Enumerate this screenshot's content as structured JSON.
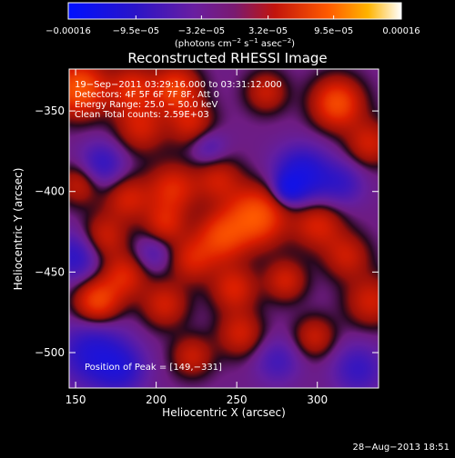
{
  "chart_data": {
    "type": "heatmap",
    "title": "Reconstructed RHESSI Image",
    "xlabel": "Heliocentric X (arcsec)",
    "ylabel": "Heliocentric Y (arcsec)",
    "xlim": [
      146,
      338
    ],
    "ylim": [
      -522,
      -324
    ],
    "xticks": [
      150,
      200,
      250,
      300
    ],
    "xtick_labels": [
      "150",
      "200",
      "250",
      "300"
    ],
    "yticks": [
      -350,
      -400,
      -450,
      -500
    ],
    "ytick_labels": [
      "−350",
      "−400",
      "−450",
      "−500"
    ],
    "colorbar": {
      "range": [
        -0.00016,
        0.00016
      ],
      "ticks": [
        -0.00016,
        -9.5e-05,
        -3.2e-05,
        3.2e-05,
        9.5e-05,
        0.00016
      ],
      "tick_labels": [
        "−0.00016",
        "−9.5e−05",
        "−3.2e−05",
        "3.2e−05",
        "9.5e−05",
        "0.00016"
      ],
      "unit_label": "(photons cm",
      "unit_exp1": "−2",
      "unit_mid": " s",
      "unit_exp2": "−1",
      "unit_mid2": " asec",
      "unit_exp3": "−2",
      "unit_end": ")"
    },
    "annotations": [
      "19−Sep−2011 03:29:16.000 to 03:31:12.000",
      "Detectors: 4F 5F 6F 7F 8F, Att 0",
      "Energy Range: 25.0 − 50.0 keV",
      "Clean    Total counts: 2.59E+03"
    ],
    "peak_label": "Position of Peak = [149,−331]",
    "footer": "28−Aug−2013 18:51",
    "blobs": [
      {
        "x": 152,
        "y": -336,
        "v": 1.0,
        "s": 12
      },
      {
        "x": 185,
        "y": -336,
        "v": 0.65,
        "s": 10
      },
      {
        "x": 190,
        "y": -360,
        "v": 0.55,
        "s": 11
      },
      {
        "x": 212,
        "y": -336,
        "v": 0.8,
        "s": 10
      },
      {
        "x": 222,
        "y": -358,
        "v": 0.55,
        "s": 10
      },
      {
        "x": 268,
        "y": -338,
        "v": 0.5,
        "s": 9
      },
      {
        "x": 312,
        "y": -345,
        "v": 0.9,
        "s": 11
      },
      {
        "x": 332,
        "y": -370,
        "v": 0.55,
        "s": 10
      },
      {
        "x": 152,
        "y": -395,
        "v": 0.5,
        "s": 9
      },
      {
        "x": 182,
        "y": -404,
        "v": 0.55,
        "s": 10
      },
      {
        "x": 210,
        "y": -398,
        "v": 0.65,
        "s": 11
      },
      {
        "x": 238,
        "y": -392,
        "v": 0.5,
        "s": 10
      },
      {
        "x": 262,
        "y": -415,
        "v": 1.0,
        "s": 13
      },
      {
        "x": 240,
        "y": -428,
        "v": 0.75,
        "s": 11
      },
      {
        "x": 222,
        "y": -442,
        "v": 0.55,
        "s": 10
      },
      {
        "x": 205,
        "y": -420,
        "v": 0.55,
        "s": 9
      },
      {
        "x": 300,
        "y": -420,
        "v": 0.6,
        "s": 11
      },
      {
        "x": 318,
        "y": -440,
        "v": 0.5,
        "s": 10
      },
      {
        "x": 333,
        "y": -468,
        "v": 0.55,
        "s": 11
      },
      {
        "x": 167,
        "y": -428,
        "v": 0.55,
        "s": 10
      },
      {
        "x": 180,
        "y": -452,
        "v": 0.6,
        "s": 10
      },
      {
        "x": 163,
        "y": -468,
        "v": 0.85,
        "s": 10
      },
      {
        "x": 205,
        "y": -470,
        "v": 0.55,
        "s": 10
      },
      {
        "x": 248,
        "y": -460,
        "v": 0.6,
        "s": 10
      },
      {
        "x": 280,
        "y": -455,
        "v": 0.55,
        "s": 9
      },
      {
        "x": 252,
        "y": -488,
        "v": 0.55,
        "s": 10
      },
      {
        "x": 222,
        "y": -502,
        "v": 0.5,
        "s": 9
      },
      {
        "x": 298,
        "y": -490,
        "v": 0.5,
        "s": 9
      },
      {
        "x": 290,
        "y": -390,
        "v": -0.9,
        "s": 12
      },
      {
        "x": 282,
        "y": -398,
        "v": -0.6,
        "s": 6
      },
      {
        "x": 166,
        "y": -383,
        "v": -0.55,
        "s": 10
      },
      {
        "x": 150,
        "y": -440,
        "v": -0.6,
        "s": 11
      },
      {
        "x": 160,
        "y": -500,
        "v": -0.7,
        "s": 14
      },
      {
        "x": 178,
        "y": -510,
        "v": -0.55,
        "s": 11
      },
      {
        "x": 315,
        "y": -395,
        "v": -0.45,
        "s": 10
      },
      {
        "x": 325,
        "y": -510,
        "v": -0.5,
        "s": 11
      },
      {
        "x": 275,
        "y": -505,
        "v": -0.4,
        "s": 10
      },
      {
        "x": 198,
        "y": -438,
        "v": -0.35,
        "s": 8
      },
      {
        "x": 232,
        "y": -372,
        "v": -0.4,
        "s": 8
      }
    ]
  }
}
